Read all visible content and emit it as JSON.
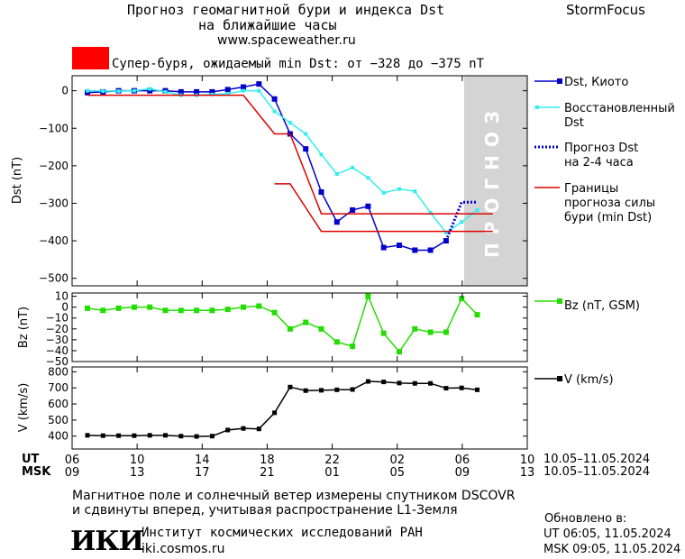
{
  "header": {
    "title_line1": "Прогноз геомагнитной бури и индекса Dst",
    "title_line2": "на ближайшие часы",
    "website": "www.spaceweather.ru",
    "brand": "StormFocus",
    "storm_text": "Супер-буря, ожидаемый min Dst: от −328 до −375 nT"
  },
  "colors": {
    "storm_box": "#ff0000",
    "dst_kyoto": "#0000cc",
    "dst_restored": "#33eeee",
    "forecast": "#0000cc",
    "bounds": "#dd0000",
    "bz": "#22dd00",
    "v": "#000000",
    "forecast_shade": "#d4d4d4"
  },
  "chart_data": [
    {
      "type": "line",
      "panel": "dst",
      "ylabel": "Dst (nT)",
      "ylim": [
        -520,
        40
      ],
      "yticks": [
        0,
        -100,
        -200,
        -300,
        -400,
        -500
      ],
      "ytick_labels": [
        "0",
        "−100",
        "−200",
        "−300",
        "−400",
        "−500"
      ],
      "xlim": [
        0,
        32
      ],
      "forecast_label": "ПРОГНОЗ",
      "forecast_zone": [
        30,
        34
      ],
      "series": [
        {
          "name": "Dst, Киото",
          "x": [
            0,
            1,
            2,
            3,
            4,
            5,
            6,
            7,
            8,
            9,
            10,
            11,
            12,
            13,
            14,
            15,
            16,
            17,
            18,
            19,
            20,
            21,
            22,
            23,
            24,
            25,
            26
          ],
          "values": [
            -5,
            -3,
            0,
            0,
            0,
            0,
            -3,
            -3,
            -3,
            3,
            10,
            18,
            -22,
            -115,
            -155,
            -270,
            -350,
            -318,
            -308,
            -418,
            -412,
            -425,
            -425,
            -400,
            null,
            null,
            null
          ]
        },
        {
          "name": "Восстановленный Dst",
          "x": [
            0,
            1,
            2,
            3,
            4,
            5,
            6,
            7,
            8,
            9,
            10,
            11,
            12,
            13,
            14,
            15,
            16,
            17,
            18,
            19,
            20,
            21,
            22,
            23,
            24,
            25,
            26
          ],
          "values": [
            0,
            -1,
            -1,
            0,
            5,
            -3,
            -12,
            -12,
            -10,
            -8,
            0,
            0,
            -55,
            -85,
            -115,
            -170,
            -222,
            -205,
            -232,
            -272,
            -262,
            -268,
            -325,
            -378,
            -350,
            -318,
            null
          ]
        },
        {
          "name": "Прогноз Dst на 2-4 часа",
          "x": [
            23,
            24,
            25
          ],
          "values": [
            -400,
            -297,
            -297
          ]
        },
        {
          "name": "Границы прогноза силы бури (min Dst)",
          "x": [
            0,
            10,
            12,
            13,
            15,
            17,
            20,
            24,
            26
          ],
          "values": [
            -12,
            -12,
            -115,
            -115,
            -328,
            -328,
            -328,
            -328,
            -328
          ]
        },
        {
          "name": "Границы прогноза силы бури (min Dst)",
          "x": [
            12,
            13,
            15,
            16,
            19,
            20,
            26
          ],
          "values": [
            -248,
            -248,
            -375,
            -375,
            -375,
            -375,
            -375
          ]
        }
      ]
    },
    {
      "type": "line",
      "panel": "bz",
      "ylabel": "Bz (nT)",
      "ylim": [
        -50,
        13
      ],
      "yticks": [
        10,
        0,
        -10,
        -20,
        -30,
        -40,
        -50
      ],
      "ytick_labels": [
        "10",
        "0",
        "−10",
        "−20",
        "−30",
        "−40",
        "−50"
      ],
      "series": [
        {
          "name": "Bz (nT, GSM)",
          "x": [
            0,
            1,
            2,
            3,
            4,
            5,
            6,
            7,
            8,
            9,
            10,
            11,
            12,
            13,
            14,
            15,
            16,
            17,
            18,
            19,
            20,
            21,
            22,
            23,
            24,
            25
          ],
          "values": [
            -1,
            -3,
            -1,
            0,
            0,
            -3,
            -3,
            -3,
            -3,
            -2,
            0,
            1,
            -5,
            -20,
            -14,
            -20,
            -32,
            -36,
            10,
            -24,
            -41,
            -20,
            -23,
            -23,
            8,
            -7
          ]
        }
      ]
    },
    {
      "type": "line",
      "panel": "v",
      "ylabel": "V (km/s)",
      "ylim": [
        320,
        830
      ],
      "yticks": [
        800,
        700,
        600,
        500,
        400
      ],
      "ytick_labels": [
        "800",
        "700",
        "600",
        "500",
        "400"
      ],
      "series": [
        {
          "name": "V (km/s)",
          "x": [
            0,
            1,
            2,
            3,
            4,
            5,
            6,
            7,
            8,
            9,
            10,
            11,
            12,
            13,
            14,
            15,
            16,
            17,
            18,
            19,
            20,
            21,
            22,
            23,
            24,
            25
          ],
          "values": [
            405,
            403,
            403,
            403,
            405,
            405,
            400,
            398,
            400,
            438,
            448,
            445,
            545,
            705,
            683,
            685,
            688,
            690,
            740,
            737,
            730,
            728,
            728,
            698,
            700,
            688
          ]
        }
      ]
    }
  ],
  "time_axis": {
    "ut_label": "UT",
    "msk_label": "MSK",
    "ut_ticks": [
      "06",
      "10",
      "14",
      "18",
      "22",
      "02",
      "06",
      "10"
    ],
    "msk_ticks": [
      "09",
      "13",
      "17",
      "21",
      "01",
      "05",
      "09",
      "13"
    ],
    "date_range_ut": "10.05–11.05.2024",
    "date_range_msk": "10.05–11.05.2024"
  },
  "legend": {
    "dst_kyoto": "Dst, Киото",
    "restored_1": "Восстановленный",
    "restored_2": "Dst",
    "forecast_1": "Прогноз Dst",
    "forecast_2": "на 2-4 часа",
    "bounds_1": "Границы",
    "bounds_2": "прогноза силы",
    "bounds_3": "бури (min Dst)",
    "bz": "Bz (nT, GSM)",
    "v": "V (km/s)"
  },
  "footer": {
    "note_line1": "Магнитное поле и солнечный ветер измерены спутником DSCOVR",
    "note_line2": "и сдвинуты вперед, учитывая распространение L1-Земля",
    "logo": "ИКИ",
    "institute": "Институт космических исследований РАН",
    "institute_url": "iki.cosmos.ru",
    "updated_label": "Обновлено в:",
    "updated_ut": "UT   06:05, 11.05.2024",
    "updated_msk": "MSK 09:05, 11.05.2024"
  }
}
